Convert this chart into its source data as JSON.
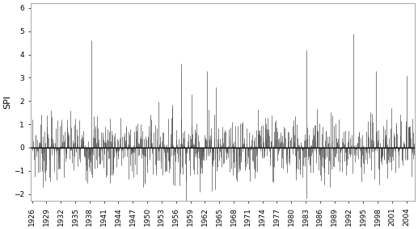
{
  "start_year": 1926,
  "end_year": 2007,
  "n_years": 81,
  "ylim": [
    -2.3,
    6.2
  ],
  "yticks": [
    -2,
    -1,
    0,
    1,
    2,
    3,
    4,
    5,
    6
  ],
  "xtick_years": [
    1926,
    1929,
    1932,
    1935,
    1938,
    1941,
    1944,
    1947,
    1950,
    1953,
    1956,
    1959,
    1962,
    1965,
    1968,
    1971,
    1974,
    1977,
    1980,
    1983,
    1986,
    1989,
    1992,
    1995,
    1998,
    2001,
    2004
  ],
  "ylabel": "SPI",
  "line_color": "#444444",
  "zero_line_color": "#000000",
  "background_color": "#ffffff",
  "ylabel_fontsize": 8,
  "tick_fontsize": 6.5
}
